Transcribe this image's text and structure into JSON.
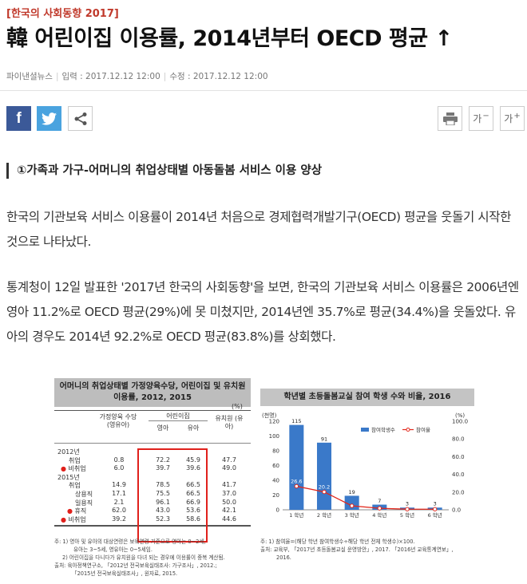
{
  "article": {
    "kicker": "[한국의 사회동향 2017]",
    "headline": "韓 어린이집 이용률, 2014년부터 OECD 평균 ↑",
    "source": "파이낸셜뉴스",
    "input_label": "입력 : 2017.12.12 12:00",
    "update_label": "수정 : 2017.12.12 12:00",
    "subhead": "①가족과 가구-어머니의 취업상태별 아동돌봄 서비스 이용 양상",
    "para1": "한국의 기관보육 서비스 이용률이 2014년 처음으로 경제협력개발기구(OECD) 평균을 웃돌기 시작한 것으로 나타났다.",
    "para2": "통계청이 12일 발표한 '2017년 한국의 사회동향'을 보면, 한국의 기관보육 서비스 이용률은 2006년엔 영아 11.2%로 OECD 평균(29%)에 못 미쳤지만, 2014년엔 35.7%로 평균(34.4%)을 웃돌았다. 유아의 경우도 2014년 92.2%로 OECD 평균(83.8%)를 상회했다."
  },
  "toolbar": {
    "facebook": "f",
    "font_minus": "가",
    "font_plus": "가",
    "minus_sign": "−",
    "plus_sign": "+"
  },
  "icons": [
    "facebook-icon",
    "twitter-icon",
    "share-icon",
    "print-icon",
    "font-decrease-icon",
    "font-increase-icon"
  ],
  "colors": {
    "kicker": "#c0392b",
    "facebook": "#3b5998",
    "twitter": "#4aa3df",
    "highlight": "#e0201b",
    "bar": "#3a79c9",
    "line": "#e2271b"
  },
  "table": {
    "title": "어머니의 취업상태별 가정양육수당, 어린이집 및 유치원 이용률, 2012, 2015",
    "unit": "(%)",
    "col_home": "가정양육 수당 (영유아)",
    "col_daycare": "어린이집",
    "col_infant": "영아",
    "col_toddler": "유아",
    "col_kinder": "유치원 (유아)",
    "rows": [
      {
        "label": "2012년",
        "v": [
          "",
          "",
          "",
          ""
        ]
      },
      {
        "label": "취업",
        "v": [
          "0.8",
          "72.2",
          "45.9",
          "47.7"
        ]
      },
      {
        "label": "비취업",
        "v": [
          "6.0",
          "39.7",
          "39.6",
          "49.0"
        ]
      },
      {
        "label": "2015년",
        "v": [
          "",
          "",
          "",
          ""
        ]
      },
      {
        "label": "취업",
        "v": [
          "14.9",
          "78.5",
          "66.5",
          "41.7"
        ]
      },
      {
        "label": "상용직",
        "v": [
          "17.1",
          "75.5",
          "66.5",
          "37.0"
        ]
      },
      {
        "label": "일용직",
        "v": [
          "2.1",
          "96.1",
          "66.9",
          "50.0"
        ]
      },
      {
        "label": "휴직",
        "v": [
          "62.0",
          "43.0",
          "53.6",
          "42.1"
        ]
      },
      {
        "label": "비취업",
        "v": [
          "39.2",
          "52.3",
          "58.6",
          "44.6"
        ]
      }
    ],
    "notes": [
      "주: 1) 영아 및 유아의 대상연령은 보육연령 기준으로 영아는 0~2세,",
      "유아는 3~5세, 영유아는 0~5세임.",
      "2) 어린이집을 다니다가 유치원을 다녀 되는 경우에 이용률이 중복 계산됨.",
      "출처: 육아정책연구소, 「2012년 전국보육실태조사: 가구조사」, 2012.;",
      "「2015년 전국보육실태조사」, 원자료, 2015."
    ]
  },
  "chart_data": {
    "type": "bar",
    "title": "학년별 초등돌봄교실 참여 학생 수와 비율, 2016",
    "categories": [
      "1 학년",
      "2 학년",
      "3 학년",
      "4 학년",
      "5 학년",
      "6 학년"
    ],
    "y_left_label": "(천명)",
    "y_right_label": "(%)",
    "ylim_left": [
      0,
      120
    ],
    "ylim_right": [
      0,
      100
    ],
    "ticks_left": [
      "0",
      "20",
      "40",
      "60",
      "80",
      "100",
      "120"
    ],
    "ticks_right": [
      "0.0",
      "20.0",
      "40.0",
      "60.0",
      "80.0",
      "100.0"
    ],
    "legend_placement": "top-right",
    "series": [
      {
        "name": "참여학생수",
        "kind": "bar",
        "values": [
          115,
          91,
          19,
          7,
          3,
          3
        ]
      },
      {
        "name": "참여율",
        "kind": "line",
        "values": [
          26.6,
          20.2,
          4.5,
          1.7,
          0.7,
          0.7
        ]
      }
    ],
    "bar_labels": [
      "115",
      "91",
      "19",
      "7",
      "3",
      "3"
    ],
    "line_labels": [
      "26.6",
      "20.2",
      "",
      "",
      "",
      ""
    ],
    "notes": [
      "주: 1) 참여율=(해당 학년 참여학생수÷해당 학년 전체 학생수)×100.",
      "출처: 교육부, 「2017년 초등돌봄교실 운영방안」, 2017. 「2016년 교육통계연보」,",
      "2016."
    ]
  }
}
